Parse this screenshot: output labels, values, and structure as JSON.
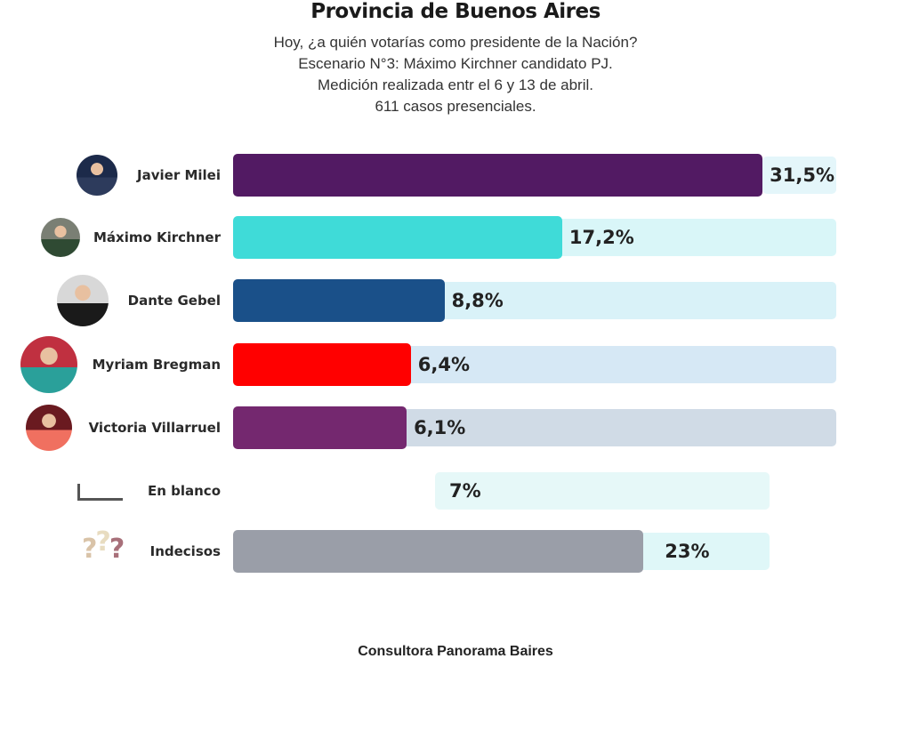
{
  "chart_data": {
    "type": "bar",
    "title": "Provincia de Buenos Aires",
    "subtitle": [
      "Hoy, ¿a quién votarías como presidente de la Nación?",
      "Escenario N°3: Máximo Kirchner candidato PJ.",
      "Medición realizada entr el 6 y 13 de abril.",
      "611 casos presenciales."
    ],
    "categories": [
      "Javier Milei",
      "Máximo Kirchner",
      "Dante Gebel",
      "Myriam Bregman",
      "Victoria Villarruel",
      "En blanco",
      "Indecisos"
    ],
    "values": [
      31.5,
      17.2,
      8.8,
      6.4,
      6.1,
      7,
      23
    ],
    "value_labels": [
      "31,5%",
      "17,2%",
      "8,8%",
      "6,4%",
      "6,1%",
      "7%",
      "23%"
    ],
    "colors": [
      "#521a63",
      "#3fdbd8",
      "#1a5089",
      "#ff0000",
      "#74286f",
      "#e6f8f8",
      "#9a9ea8"
    ],
    "track_colors": [
      "#e4f6fa",
      "#d9f6f8",
      "#d9f2f8",
      "#d6e8f5",
      "#d0dbe6",
      "#e6f8f8",
      "#dff7f8"
    ],
    "icons": [
      "avatar-photo",
      "avatar-photo",
      "avatar-photo",
      "avatar-photo",
      "avatar-photo",
      "blank-bracket-icon",
      "question-marks-icon"
    ],
    "source": "Consultora Panorama Baires"
  }
}
